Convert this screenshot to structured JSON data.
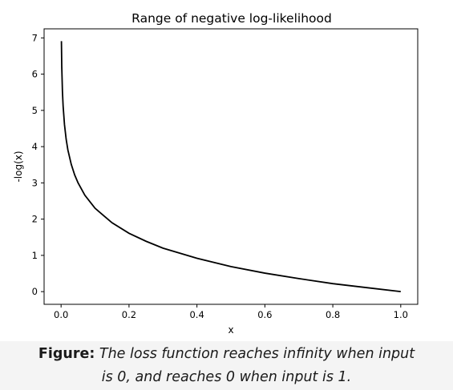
{
  "chart_data": {
    "type": "line",
    "title": "Range of negative log-likelihood",
    "xlabel": "x",
    "ylabel": "-log(x)",
    "xlim": [
      -0.05,
      1.05
    ],
    "ylim": [
      -0.35,
      7.25
    ],
    "xticks": [
      "0.0",
      "0.2",
      "0.4",
      "0.6",
      "0.8",
      "1.0"
    ],
    "yticks": [
      "0",
      "1",
      "2",
      "3",
      "4",
      "5",
      "6",
      "7"
    ],
    "grid": false,
    "series": [
      {
        "color": "#000000",
        "x": [
          0.001,
          0.002,
          0.004,
          0.006,
          0.01,
          0.015,
          0.02,
          0.03,
          0.04,
          0.05,
          0.07,
          0.1,
          0.15,
          0.2,
          0.25,
          0.3,
          0.4,
          0.5,
          0.6,
          0.7,
          0.8,
          0.9,
          1.0
        ],
        "y": [
          6.91,
          6.21,
          5.52,
          5.12,
          4.61,
          4.2,
          3.91,
          3.51,
          3.22,
          3.0,
          2.66,
          2.3,
          1.9,
          1.61,
          1.39,
          1.2,
          0.92,
          0.69,
          0.51,
          0.36,
          0.22,
          0.11,
          0.0
        ]
      }
    ]
  },
  "caption": {
    "label": "Figure:",
    "line1": "The loss function reaches infinity when input",
    "line2": "is 0, and reaches 0 when input is 1."
  }
}
